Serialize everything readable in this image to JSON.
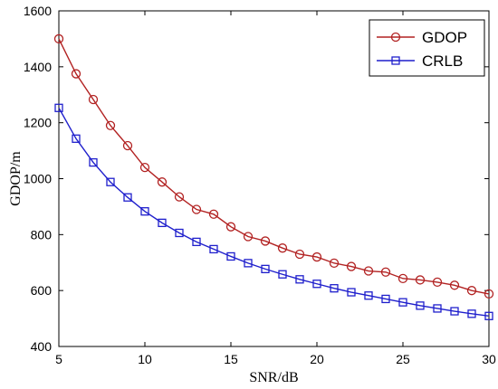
{
  "chart_data": {
    "type": "line",
    "title": "",
    "xlabel": "SNR/dB",
    "ylabel": "GDOP/m",
    "xlim": [
      5,
      30
    ],
    "ylim": [
      400,
      1600
    ],
    "xticks": [
      5,
      10,
      15,
      20,
      25,
      30
    ],
    "yticks": [
      400,
      600,
      800,
      1000,
      1200,
      1400,
      1600
    ],
    "grid": false,
    "legend_position": "top-right",
    "x": [
      5,
      6,
      7,
      8,
      9,
      10,
      11,
      12,
      13,
      14,
      15,
      16,
      17,
      18,
      19,
      20,
      21,
      22,
      23,
      24,
      25,
      26,
      27,
      28,
      29,
      30
    ],
    "series": [
      {
        "name": "GDOP",
        "color": "#b22222",
        "marker": "circle",
        "values": [
          1500,
          1375,
          1283,
          1190,
          1118,
          1040,
          988,
          935,
          890,
          873,
          828,
          793,
          777,
          752,
          730,
          720,
          698,
          686,
          670,
          666,
          643,
          638,
          630,
          619,
          600,
          588
        ]
      },
      {
        "name": "CRLB",
        "color": "#1f1fcc",
        "marker": "square",
        "values": [
          1253,
          1143,
          1058,
          988,
          933,
          883,
          842,
          806,
          774,
          748,
          722,
          698,
          677,
          658,
          640,
          624,
          608,
          594,
          582,
          570,
          558,
          546,
          536,
          526,
          517,
          509
        ]
      }
    ]
  }
}
